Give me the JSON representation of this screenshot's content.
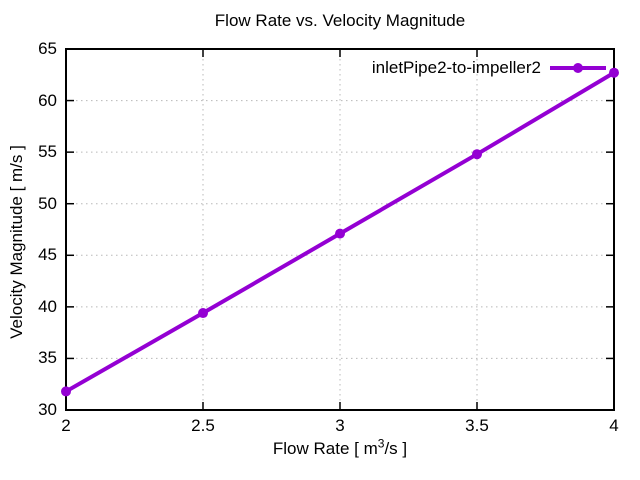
{
  "header": {
    "title": "Flow Rate vs. Velocity Magnitude"
  },
  "legend": {
    "label": "inletPipe2-to-impeller2"
  },
  "axes": {
    "xlabel_prefix": "Flow Rate [ m",
    "xlabel_sup": "3",
    "xlabel_suffix": "/s ]",
    "ylabel": "Velocity Magnitude [ m/s ]"
  },
  "colors": {
    "series": "#9400D3",
    "grid": "#b8b8b8",
    "axis": "#000000",
    "background": "#ffffff",
    "text": "#000000"
  },
  "chart_data": {
    "type": "line",
    "title": "Flow Rate vs. Velocity Magnitude",
    "xlabel": "Flow Rate [ m^3/s ]",
    "ylabel": "Velocity Magnitude [ m/s ]",
    "xlim": [
      2,
      4
    ],
    "ylim": [
      30,
      65
    ],
    "x_ticks": [
      2,
      2.5,
      3,
      3.5,
      4
    ],
    "y_ticks": [
      30,
      35,
      40,
      45,
      50,
      55,
      60,
      65
    ],
    "grid": true,
    "grid_style": "dotted",
    "legend_position": "top-right-inside",
    "marker": "filled-circle",
    "series": [
      {
        "name": "inletPipe2-to-impeller2",
        "color": "#9400D3",
        "x": [
          2,
          2.5,
          3,
          3.5,
          4
        ],
        "y": [
          31.8,
          39.4,
          47.1,
          54.8,
          62.7
        ]
      }
    ]
  }
}
